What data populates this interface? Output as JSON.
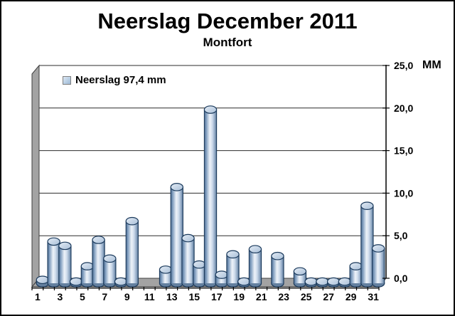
{
  "title": "Neerslag December 2011",
  "subtitle": "Montfort",
  "legend": {
    "label": "Neerslag 97,4 mm",
    "swatch_color": "#b9cfe4"
  },
  "axis": {
    "unit_label": "MM",
    "y_tick_labels": [
      "0,0",
      "5,0",
      "10,0",
      "15,0",
      "20,0",
      "25,0"
    ],
    "x_tick_labels": [
      "1",
      "3",
      "5",
      "7",
      "9",
      "11",
      "13",
      "15",
      "17",
      "19",
      "21",
      "23",
      "25",
      "27",
      "29",
      "31"
    ]
  },
  "chart_data": {
    "type": "bar",
    "style": "3d-cylinder",
    "title": "Neerslag December 2011",
    "subtitle": "Montfort",
    "ylabel": "MM",
    "xlabel": "",
    "ylim": [
      0,
      25
    ],
    "y_ticks": [
      0,
      5,
      10,
      15,
      20,
      25
    ],
    "grid": true,
    "legend_position": "top-left",
    "categories": [
      1,
      2,
      3,
      4,
      5,
      6,
      7,
      8,
      9,
      10,
      11,
      12,
      13,
      14,
      15,
      16,
      17,
      18,
      19,
      20,
      21,
      22,
      23,
      24,
      25,
      26,
      27,
      28,
      29,
      30,
      31
    ],
    "series": [
      {
        "name": "Neerslag 97,4 mm",
        "total_mm": 97.4,
        "values": [
          0.4,
          4.9,
          4.4,
          0.2,
          2.0,
          5.1,
          2.9,
          0.2,
          7.3,
          0,
          0,
          1.6,
          11.3,
          5.3,
          2.2,
          20.4,
          1.0,
          3.4,
          0.2,
          4.0,
          0,
          3.2,
          0,
          1.4,
          0.2,
          0.2,
          0.2,
          0.2,
          2.0,
          9.1,
          4.1
        ]
      }
    ]
  },
  "colors": {
    "bar_outline": "#1b3a5c",
    "bar_body_light": "#eef3f9",
    "bar_body_dark": "#4f6d90",
    "bar_top_light": "#e4ecf5",
    "bar_top_dark": "#a9bfd8",
    "bar_base": "#64809f",
    "wall_gray": "#a3a3a3",
    "floor_side": "#6b6b6b",
    "grid_line": "#2b2b2b",
    "axis_black": "#000000"
  }
}
